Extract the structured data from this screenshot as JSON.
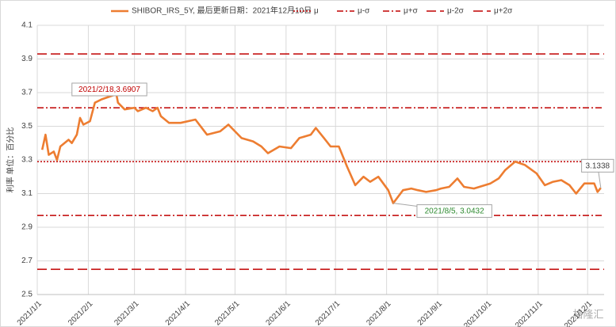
{
  "chart_data": {
    "type": "line",
    "title": "SHIBOR_IRS_5Y, 最后更新日期：2021年12月10日",
    "y_label": "利率 单位：百分比",
    "x": [
      "2021/1/4",
      "2021/1/6",
      "2021/1/8",
      "2021/1/11",
      "2021/1/13",
      "2021/1/15",
      "2021/1/20",
      "2021/1/22",
      "2021/1/25",
      "2021/1/27",
      "2021/1/29",
      "2021/2/2",
      "2021/2/5",
      "2021/2/9",
      "2021/2/18",
      "2021/2/19",
      "2021/2/23",
      "2021/3/1",
      "2021/3/3",
      "2021/3/8",
      "2021/3/12",
      "2021/3/15",
      "2021/3/17",
      "2021/3/22",
      "2021/3/29",
      "2021/4/7",
      "2021/4/14",
      "2021/4/22",
      "2021/4/27",
      "2021/5/5",
      "2021/5/12",
      "2021/5/17",
      "2021/5/21",
      "2021/5/28",
      "2021/6/4",
      "2021/6/9",
      "2021/6/16",
      "2021/6/19",
      "2021/6/24",
      "2021/6/28",
      "2021/7/3",
      "2021/7/8",
      "2021/7/13",
      "2021/7/18",
      "2021/7/22",
      "2021/7/27",
      "2021/8/2",
      "2021/8/5",
      "2021/8/11",
      "2021/8/16",
      "2021/8/20",
      "2021/8/25",
      "2021/8/31",
      "2021/9/3",
      "2021/9/8",
      "2021/9/13",
      "2021/9/17",
      "2021/9/23",
      "2021/10/3",
      "2021/10/8",
      "2021/10/12",
      "2021/10/18",
      "2021/10/24",
      "2021/10/31",
      "2021/11/5",
      "2021/11/10",
      "2021/11/15",
      "2021/11/20",
      "2021/11/24",
      "2021/11/29",
      "2021/12/5",
      "2021/12/7",
      "2021/12/9"
    ],
    "series": [
      {
        "name": "SHIBOR_IRS_5Y, 最后更新日期：2021年12月10日",
        "color": "#ed7d31",
        "values": [
          3.36,
          3.45,
          3.33,
          3.35,
          3.3,
          3.38,
          3.42,
          3.4,
          3.45,
          3.55,
          3.51,
          3.53,
          3.64,
          3.66,
          3.6907,
          3.64,
          3.6,
          3.61,
          3.59,
          3.61,
          3.59,
          3.61,
          3.56,
          3.52,
          3.52,
          3.54,
          3.45,
          3.47,
          3.51,
          3.43,
          3.41,
          3.38,
          3.34,
          3.38,
          3.37,
          3.43,
          3.45,
          3.49,
          3.43,
          3.38,
          3.38,
          3.26,
          3.15,
          3.2,
          3.17,
          3.2,
          3.12,
          3.0432,
          3.12,
          3.13,
          3.12,
          3.11,
          3.12,
          3.13,
          3.14,
          3.19,
          3.14,
          3.13,
          3.16,
          3.19,
          3.24,
          3.29,
          3.27,
          3.22,
          3.15,
          3.17,
          3.18,
          3.15,
          3.1,
          3.16,
          3.16,
          3.11,
          3.1338
        ]
      }
    ],
    "ref_lines": [
      {
        "name": "μ",
        "value": 3.29,
        "color": "#c00000",
        "dash": "dotted"
      },
      {
        "name": "μ-σ",
        "value": 2.97,
        "color": "#c00000",
        "dash": "dashdot"
      },
      {
        "name": "μ+σ",
        "value": 3.61,
        "color": "#c00000",
        "dash": "dashdot"
      },
      {
        "name": "μ-2σ",
        "value": 2.65,
        "color": "#c00000",
        "dash": "longdash"
      },
      {
        "name": "μ+2σ",
        "value": 3.93,
        "color": "#c00000",
        "dash": "longdash"
      }
    ],
    "annotations": [
      {
        "text": "2021/2/18,3.6907",
        "x": "2021/2/18",
        "y": 3.6907,
        "color": "#c00000"
      },
      {
        "text": "2021/8/5, 3.0432",
        "x": "2021/8/5",
        "y": 3.0432,
        "color": "#2e8b30"
      },
      {
        "text": "3.1338",
        "x": "2021/12/9",
        "y": 3.1338,
        "color": "#404040"
      }
    ],
    "xlim": [
      "2021/1/1",
      "2021/12/11"
    ],
    "xticks": [
      "2021/1/1",
      "2021/2/1",
      "2021/3/1",
      "2021/4/1",
      "2021/5/1",
      "2021/6/1",
      "2021/7/1",
      "2021/8/1",
      "2021/9/1",
      "2021/10/1",
      "2021/11/1",
      "2021/12/1"
    ],
    "ylim": [
      2.5,
      4.1
    ],
    "yticks": [
      2.5,
      2.7,
      2.9,
      3.1,
      3.3,
      3.5,
      3.7,
      3.9,
      4.1
    ],
    "grid": true,
    "watermark": "格隆汇"
  }
}
